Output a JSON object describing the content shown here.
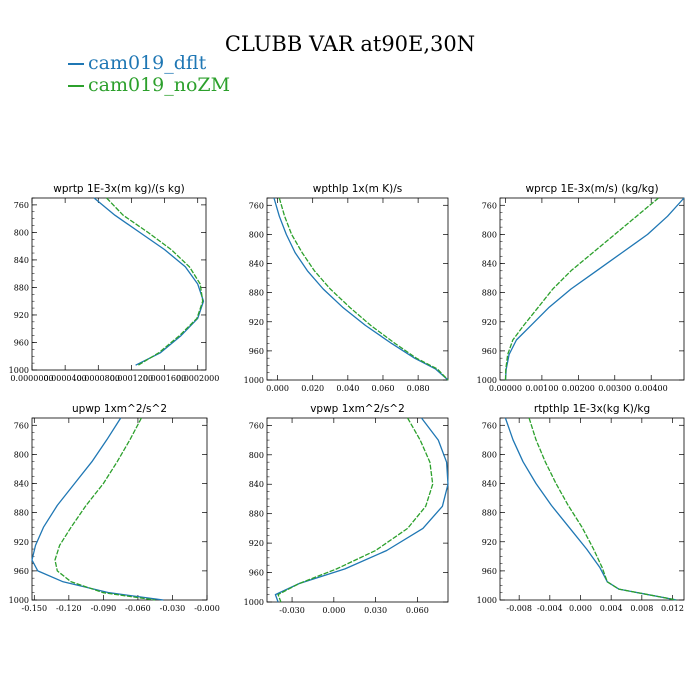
{
  "title": "CLUBB VAR at90E,30N",
  "legend": [
    {
      "label": "cam019_dflt",
      "color": "#1f77b4"
    },
    {
      "label": "cam019_noZM",
      "color": "#2ca02c"
    }
  ],
  "chart_data": [
    {
      "type": "line",
      "title": "wprtp  1E-3x(m kg)/(s kg)",
      "xlim": [
        0,
        0.00021
      ],
      "ylim": [
        1000,
        750
      ],
      "xticks": [
        0,
        4e-05,
        8e-05,
        0.00012,
        0.00016,
        0.0002
      ],
      "xtick_labels": [
        "0.0000000",
        "0.0000400",
        "0.0000800",
        "0.0001200",
        "0.0001600",
        "0.0002000"
      ],
      "yticks": [
        760,
        800,
        840,
        880,
        920,
        960,
        1000
      ],
      "series": [
        {
          "name": "cam019_dflt",
          "y": [
            750,
            775,
            800,
            825,
            850,
            875,
            900,
            925,
            950,
            975,
            993
          ],
          "x": [
            7.5e-05,
            0.0001,
            0.00013,
            0.00016,
            0.000185,
            0.0002,
            0.000207,
            0.0002,
            0.00018,
            0.000155,
            0.000125
          ]
        },
        {
          "name": "cam019_noZM",
          "y": [
            750,
            775,
            800,
            825,
            850,
            875,
            900,
            925,
            950,
            975,
            993
          ],
          "x": [
            9e-05,
            0.00011,
            0.00014,
            0.000168,
            0.00019,
            0.000203,
            0.000206,
            0.000199,
            0.000178,
            0.000153,
            0.000128
          ]
        }
      ]
    },
    {
      "type": "line",
      "title": "wpthlp  1x(m K)/s",
      "xlim": [
        -0.006,
        0.097
      ],
      "ylim": [
        1000,
        750
      ],
      "xticks": [
        0,
        0.02,
        0.04,
        0.06,
        0.08
      ],
      "xtick_labels": [
        "0.000",
        "0.020",
        "0.040",
        "0.060",
        "0.080"
      ],
      "yticks": [
        760,
        800,
        840,
        880,
        920,
        960,
        1000
      ],
      "series": [
        {
          "name": "cam019_dflt",
          "y": [
            750,
            775,
            800,
            825,
            850,
            875,
            900,
            925,
            950,
            970,
            985,
            1000
          ],
          "x": [
            -0.002,
            0.001,
            0.005,
            0.01,
            0.017,
            0.026,
            0.037,
            0.05,
            0.065,
            0.078,
            0.09,
            0.097
          ]
        },
        {
          "name": "cam019_noZM",
          "y": [
            750,
            775,
            800,
            825,
            850,
            875,
            900,
            925,
            950,
            970,
            985,
            1000
          ],
          "x": [
            0.001,
            0.004,
            0.008,
            0.014,
            0.021,
            0.03,
            0.041,
            0.053,
            0.067,
            0.079,
            0.091,
            0.097
          ]
        }
      ]
    },
    {
      "type": "line",
      "title": "wprcp  1E-3x(m/s) (kg/kg)",
      "xlim": [
        -0.00015,
        0.0049
      ],
      "ylim": [
        1000,
        750
      ],
      "xticks": [
        0,
        0.001,
        0.002,
        0.003,
        0.004
      ],
      "xtick_labels": [
        "0.00000",
        "0.00100",
        "0.00200",
        "0.00300",
        "0.00400"
      ],
      "yticks": [
        760,
        800,
        840,
        880,
        920,
        960,
        1000
      ],
      "series": [
        {
          "name": "cam019_dflt",
          "y": [
            750,
            775,
            800,
            825,
            850,
            875,
            900,
            925,
            945,
            965,
            985,
            1000
          ],
          "x": [
            0.0049,
            0.00445,
            0.0039,
            0.0032,
            0.0025,
            0.0018,
            0.0012,
            0.0007,
            0.0003,
            0.0001,
            2e-05,
            0.0
          ]
        },
        {
          "name": "cam019_noZM",
          "y": [
            750,
            775,
            800,
            825,
            850,
            875,
            900,
            925,
            945,
            965,
            985,
            1000
          ],
          "x": [
            0.0042,
            0.0036,
            0.003,
            0.0024,
            0.0018,
            0.0013,
            0.0009,
            0.0005,
            0.0002,
            6e-05,
            1e-05,
            0.0
          ]
        }
      ]
    },
    {
      "type": "line",
      "title": "upwp  1xm^2/s^2",
      "xlim": [
        -0.152,
        0.0
      ],
      "ylim": [
        1000,
        750
      ],
      "xticks": [
        -0.15,
        -0.12,
        -0.09,
        -0.06,
        -0.03,
        0.0
      ],
      "xtick_labels": [
        "-0.150",
        "-0.120",
        "-0.090",
        "-0.060",
        "-0.030",
        "-0.000"
      ],
      "yticks": [
        760,
        800,
        840,
        880,
        920,
        960,
        1000
      ],
      "series": [
        {
          "name": "cam019_dflt",
          "y": [
            750,
            780,
            810,
            840,
            870,
            900,
            925,
            945,
            960,
            975,
            990,
            1000
          ],
          "x": [
            -0.075,
            -0.087,
            -0.1,
            -0.115,
            -0.13,
            -0.142,
            -0.149,
            -0.152,
            -0.147,
            -0.125,
            -0.085,
            -0.038
          ]
        },
        {
          "name": "cam019_noZM",
          "y": [
            750,
            780,
            810,
            840,
            870,
            900,
            925,
            945,
            960,
            975,
            990,
            1000
          ],
          "x": [
            -0.057,
            -0.067,
            -0.078,
            -0.09,
            -0.105,
            -0.118,
            -0.128,
            -0.132,
            -0.13,
            -0.118,
            -0.09,
            -0.045
          ]
        }
      ]
    },
    {
      "type": "line",
      "title": "vpwp  1xm^2/s^2",
      "xlim": [
        -0.048,
        0.082
      ],
      "ylim": [
        1000,
        750
      ],
      "xticks": [
        -0.03,
        0.0,
        0.03,
        0.06
      ],
      "xtick_labels": [
        "-0.030",
        "0.000",
        "0.030",
        "0.060"
      ],
      "yticks": [
        760,
        800,
        840,
        880,
        920,
        960,
        1000
      ],
      "series": [
        {
          "name": "cam019_dflt",
          "y": [
            750,
            780,
            810,
            840,
            870,
            900,
            930,
            955,
            975,
            990,
            1000
          ],
          "x": [
            0.063,
            0.075,
            0.081,
            0.082,
            0.078,
            0.064,
            0.038,
            0.008,
            -0.025,
            -0.042,
            -0.04
          ]
        },
        {
          "name": "cam019_noZM",
          "y": [
            750,
            780,
            810,
            840,
            870,
            900,
            930,
            955,
            975,
            990,
            1000
          ],
          "x": [
            0.053,
            0.062,
            0.069,
            0.071,
            0.066,
            0.053,
            0.03,
            0.002,
            -0.025,
            -0.04,
            -0.038
          ]
        }
      ]
    },
    {
      "type": "line",
      "title": "rtpthlp  1E-3x(kg K)/kg",
      "xlim": [
        -0.0105,
        0.0135
      ],
      "ylim": [
        1000,
        750
      ],
      "xticks": [
        -0.008,
        -0.004,
        0.0,
        0.004,
        0.008,
        0.012
      ],
      "xtick_labels": [
        "-0.008",
        "-0.004",
        "0.000",
        "0.004",
        "0.008",
        "0.012"
      ],
      "yticks": [
        760,
        800,
        840,
        880,
        920,
        960,
        1000
      ],
      "series": [
        {
          "name": "cam019_dflt",
          "y": [
            750,
            780,
            810,
            840,
            870,
            900,
            930,
            955,
            975,
            985,
            992,
            998,
            1000
          ],
          "x": [
            -0.0098,
            -0.0088,
            -0.0075,
            -0.0058,
            -0.0038,
            -0.0015,
            0.0008,
            0.0025,
            0.0035,
            0.005,
            0.0085,
            0.0115,
            0.0125
          ]
        },
        {
          "name": "cam019_noZM",
          "y": [
            750,
            780,
            810,
            840,
            870,
            900,
            930,
            955,
            975,
            985,
            992,
            998,
            1000
          ],
          "x": [
            -0.0067,
            -0.0058,
            -0.0046,
            -0.0032,
            -0.0016,
            0.0002,
            0.0017,
            0.0028,
            0.0035,
            0.005,
            0.0085,
            0.0115,
            0.0125
          ]
        }
      ]
    }
  ]
}
